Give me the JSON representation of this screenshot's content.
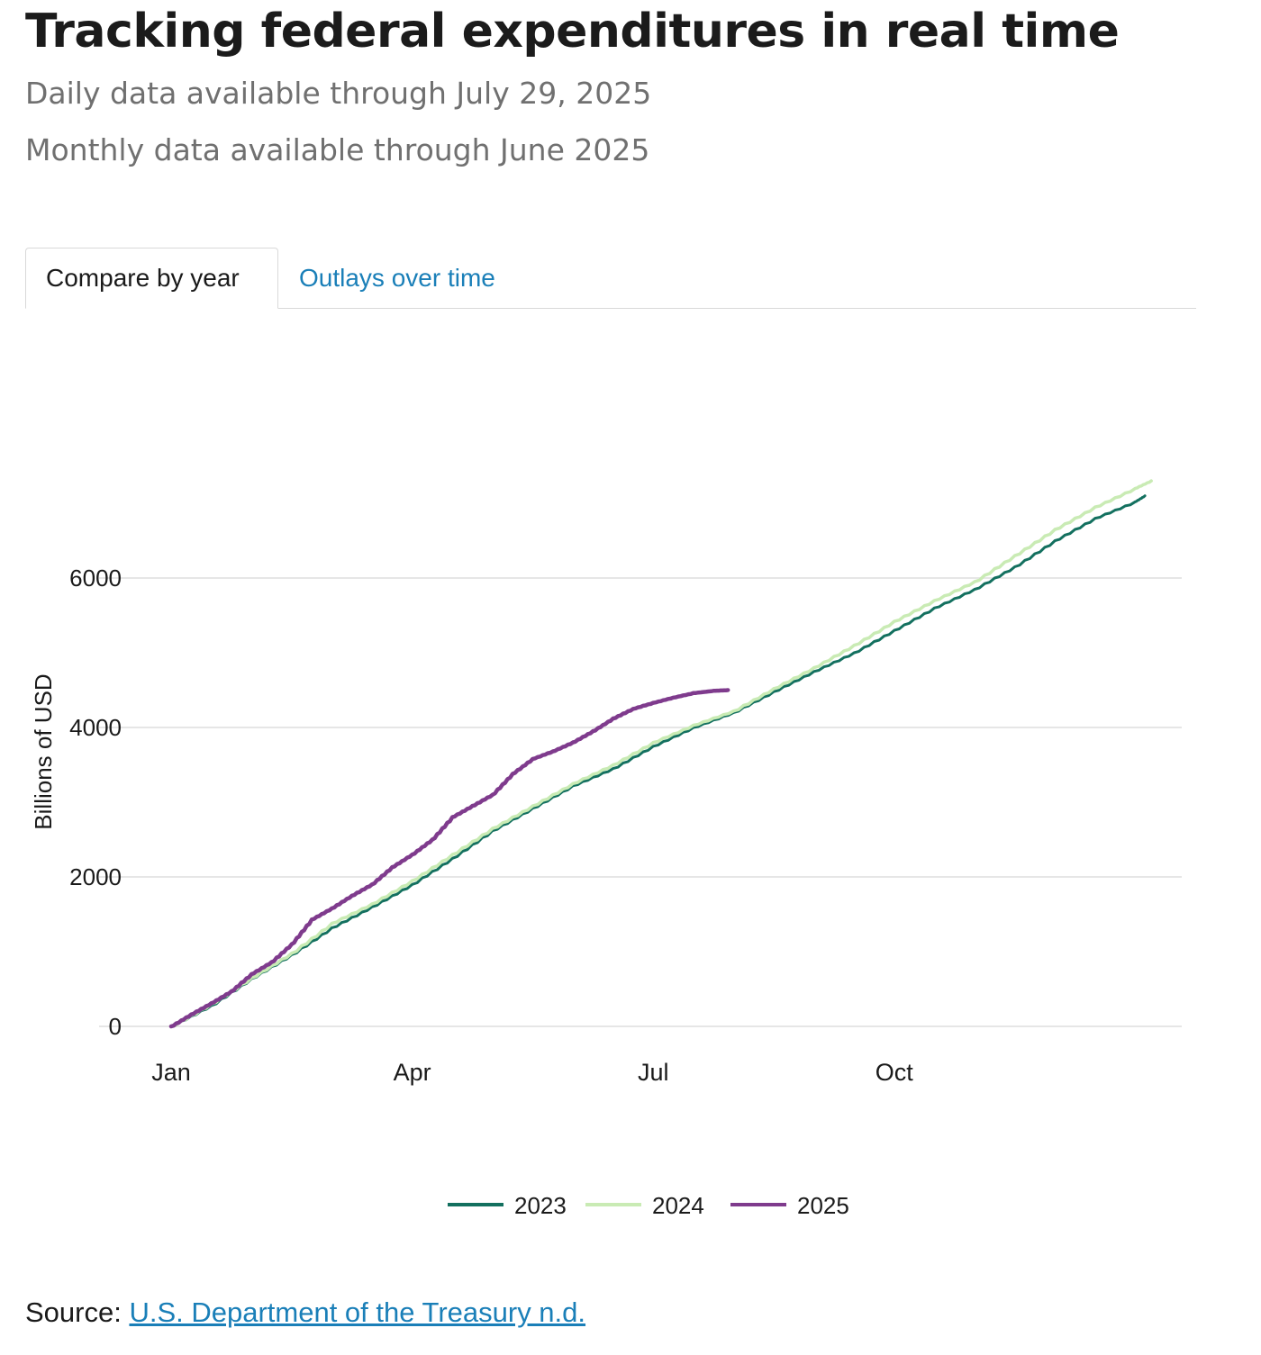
{
  "header": {
    "title": "Tracking federal expenditures in real time",
    "daily_note": "Daily data available through July 29, 2025",
    "monthly_note": "Monthly data available through June 2025"
  },
  "tabs": [
    {
      "label": "Compare by year",
      "active": true
    },
    {
      "label": "Outlays over time",
      "active": false
    }
  ],
  "source": {
    "prefix": "Source: ",
    "link_text": "U.S. Department of the Treasury n.d."
  },
  "colors": {
    "series_2023": "#13705f",
    "series_2024": "#c9ebb4",
    "series_2025": "#7f3b8d",
    "grid": "#e6e6e6",
    "link": "#1a7fb8"
  },
  "chart_data": {
    "type": "line",
    "title": "",
    "xlabel": "",
    "ylabel": "Billions of USD",
    "x_unit": "month of year (1 = Jan 1)",
    "xlim": [
      1,
      13.2
    ],
    "ylim": [
      0,
      7600
    ],
    "y_ticks": [
      0,
      2000,
      4000,
      6000
    ],
    "x_ticks": [
      {
        "label": "Jan",
        "value": 1
      },
      {
        "label": "Apr",
        "value": 4
      },
      {
        "label": "Jul",
        "value": 7
      },
      {
        "label": "Oct",
        "value": 10
      }
    ],
    "grid": true,
    "legend_position": "bottom-center",
    "series": [
      {
        "name": "2023",
        "x": [
          1,
          1.5,
          2,
          2.5,
          3,
          3.5,
          4,
          4.5,
          5,
          5.5,
          6,
          6.5,
          7,
          7.5,
          8,
          8.5,
          9,
          9.5,
          10,
          10.5,
          11,
          11.5,
          12,
          12.5,
          13,
          13.12
        ],
        "values": [
          0,
          280,
          640,
          960,
          1320,
          1600,
          1900,
          2250,
          2620,
          2920,
          3220,
          3450,
          3750,
          4000,
          4200,
          4480,
          4750,
          5000,
          5300,
          5600,
          5850,
          6150,
          6500,
          6800,
          7020,
          7100
        ]
      },
      {
        "name": "2024",
        "x": [
          1,
          1.5,
          2,
          2.5,
          3,
          3.5,
          4,
          4.5,
          5,
          5.5,
          6,
          6.5,
          7,
          7.5,
          8,
          8.5,
          9,
          9.5,
          10,
          10.5,
          11,
          11.5,
          12,
          12.5,
          13,
          13.2
        ],
        "values": [
          0,
          300,
          650,
          980,
          1380,
          1640,
          1950,
          2300,
          2650,
          2950,
          3250,
          3500,
          3800,
          4030,
          4220,
          4520,
          4800,
          5100,
          5420,
          5700,
          5950,
          6300,
          6650,
          6950,
          7200,
          7300
        ]
      },
      {
        "name": "2025",
        "x": [
          1,
          1.25,
          1.5,
          1.75,
          2,
          2.25,
          2.5,
          2.75,
          3,
          3.25,
          3.5,
          3.75,
          4,
          4.25,
          4.5,
          4.75,
          5,
          5.25,
          5.5,
          5.75,
          6,
          6.25,
          6.5,
          6.75,
          7,
          7.25,
          7.5,
          7.75,
          7.93
        ],
        "values": [
          0,
          160,
          310,
          470,
          700,
          860,
          1100,
          1430,
          1580,
          1750,
          1900,
          2130,
          2300,
          2500,
          2800,
          2950,
          3100,
          3380,
          3580,
          3680,
          3800,
          3950,
          4120,
          4250,
          4330,
          4400,
          4460,
          4490,
          4500
        ]
      }
    ]
  }
}
